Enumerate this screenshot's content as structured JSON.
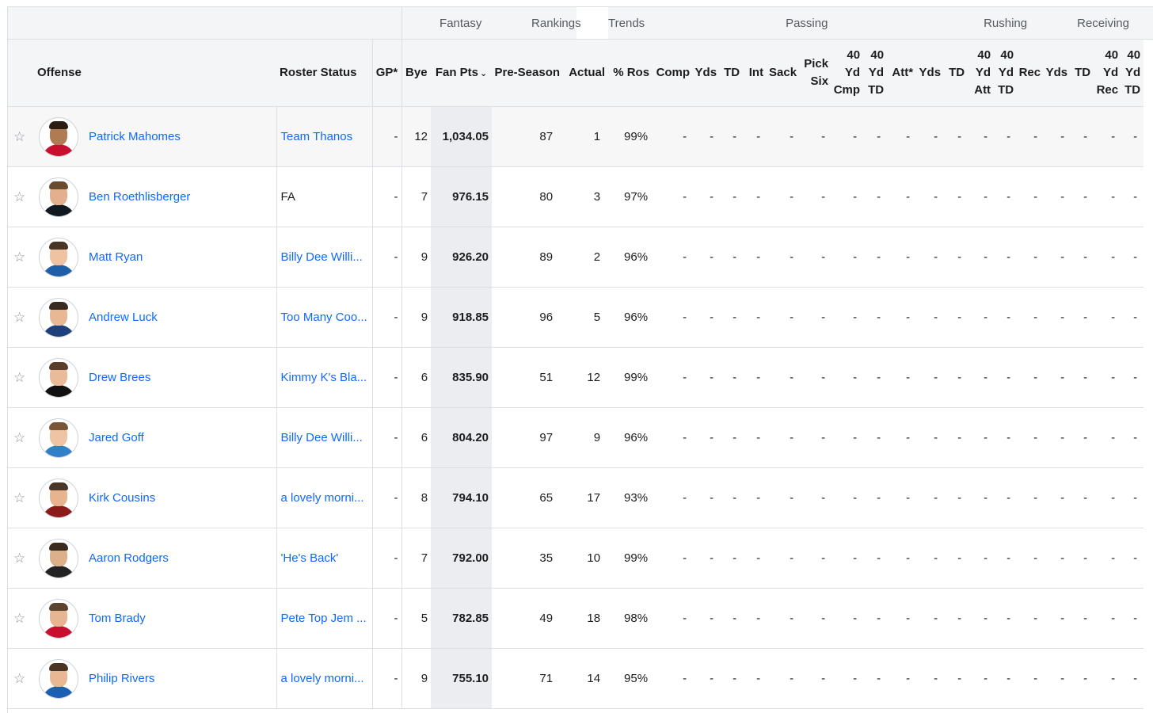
{
  "group_headers": [
    "Fantasy",
    "Rankings",
    "Trends",
    "Passing",
    "Rushing",
    "Receiving"
  ],
  "columns": {
    "offense": "Offense",
    "roster_status": "Roster Status",
    "gp": "GP*",
    "bye": "Bye",
    "fan_pts": "Fan Pts",
    "pre_season": "Pre-Season",
    "actual": "Actual",
    "pct_ros": "% Ros",
    "comp": "Comp",
    "pass_yds": "Yds",
    "pass_td": "TD",
    "int": "Int",
    "sack": "Sack",
    "pick_six": "Pick Six",
    "pass_40_cmp": "40 Yd Cmp",
    "pass_40_td": "40 Yd TD",
    "rush_att": "Att*",
    "rush_yds": "Yds",
    "rush_td": "TD",
    "rush_40_att": "40 Yd Att",
    "rush_40_td": "40 Yd TD",
    "rec": "Rec",
    "rec_yds": "Yds",
    "rec_td": "TD",
    "rec_40_rec": "40 Yd Rec",
    "rec_40_td": "40 Yd TD"
  },
  "sort_caret": "⌄",
  "star_glyph": "☆",
  "dash": "-",
  "players": [
    {
      "name": "Patrick Mahomes",
      "status": "Team Thanos",
      "status_link": true,
      "gp": "-",
      "bye": "12",
      "fan_pts": "1,034.05",
      "pre_season": "87",
      "actual": "1",
      "ros": "99%",
      "jersey": "#c8102e",
      "hair": "#2b1d14",
      "skin": "#b07a52"
    },
    {
      "name": "Ben Roethlisberger",
      "status": "FA",
      "status_link": false,
      "gp": "-",
      "bye": "7",
      "fan_pts": "976.15",
      "pre_season": "80",
      "actual": "3",
      "ros": "97%",
      "jersey": "#101820",
      "hair": "#6b4a2e",
      "skin": "#e2b08e"
    },
    {
      "name": "Matt Ryan",
      "status": "Billy Dee Willi...",
      "status_link": true,
      "gp": "-",
      "bye": "9",
      "fan_pts": "926.20",
      "pre_season": "89",
      "actual": "2",
      "ros": "96%",
      "jersey": "#1f5fa8",
      "hair": "#4a3424",
      "skin": "#efc3a2"
    },
    {
      "name": "Andrew Luck",
      "status": "Too Many Coo...",
      "status_link": true,
      "gp": "-",
      "bye": "9",
      "fan_pts": "918.85",
      "pre_season": "96",
      "actual": "5",
      "ros": "96%",
      "jersey": "#1d3f7a",
      "hair": "#3b2a1f",
      "skin": "#e8b894"
    },
    {
      "name": "Drew Brees",
      "status": "Kimmy K's Bla...",
      "status_link": true,
      "gp": "-",
      "bye": "6",
      "fan_pts": "835.90",
      "pre_season": "51",
      "actual": "12",
      "ros": "99%",
      "jersey": "#111111",
      "hair": "#5a3e2a",
      "skin": "#e9bb98"
    },
    {
      "name": "Jared Goff",
      "status": "Billy Dee Willi...",
      "status_link": true,
      "gp": "-",
      "bye": "6",
      "fan_pts": "804.20",
      "pre_season": "97",
      "actual": "9",
      "ros": "96%",
      "jersey": "#2f80c8",
      "hair": "#7a5536",
      "skin": "#efc4a4"
    },
    {
      "name": "Kirk Cousins",
      "status": "a lovely morni...",
      "status_link": true,
      "gp": "-",
      "bye": "8",
      "fan_pts": "794.10",
      "pre_season": "65",
      "actual": "17",
      "ros": "93%",
      "jersey": "#8b1a1a",
      "hair": "#4d3526",
      "skin": "#e6b48f"
    },
    {
      "name": "Aaron Rodgers",
      "status": "'He's Back'",
      "status_link": true,
      "gp": "-",
      "bye": "7",
      "fan_pts": "792.00",
      "pre_season": "35",
      "actual": "10",
      "ros": "99%",
      "jersey": "#222222",
      "hair": "#3a2a1d",
      "skin": "#ddb08c"
    },
    {
      "name": "Tom Brady",
      "status": "Pete Top Jem ...",
      "status_link": true,
      "gp": "-",
      "bye": "5",
      "fan_pts": "782.85",
      "pre_season": "49",
      "actual": "18",
      "ros": "98%",
      "jersey": "#c8102e",
      "hair": "#5c4330",
      "skin": "#e6b592"
    },
    {
      "name": "Philip Rivers",
      "status": "a lovely morni...",
      "status_link": true,
      "gp": "-",
      "bye": "9",
      "fan_pts": "755.10",
      "pre_season": "71",
      "actual": "14",
      "ros": "95%",
      "jersey": "#1a5fb4",
      "hair": "#4a3424",
      "skin": "#e8b894"
    }
  ]
}
